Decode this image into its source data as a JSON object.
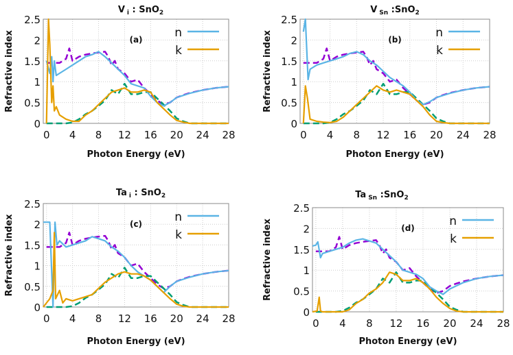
{
  "chart_data": [
    {
      "type": "line",
      "title": {
        "main": "V",
        "sub": "i",
        "rest": " : SnO",
        "sub2": "2"
      },
      "panel_label": "(a)",
      "xlabel": "Photon Energy (eV)",
      "ylabel": "Refractive index",
      "xlim": [
        -0.5,
        28
      ],
      "ylim": [
        0,
        2.5
      ],
      "xticks": [
        0,
        4,
        8,
        12,
        16,
        20,
        24,
        28
      ],
      "yticks": [
        0,
        0.5,
        1,
        1.5,
        2,
        2.5
      ],
      "ytick_labels": [
        "0",
        "0.5",
        "1",
        "1.5",
        "2",
        "2.5"
      ],
      "grid": true,
      "legend": "top-right",
      "series": [
        {
          "name": "n",
          "color": "#5ab4e5",
          "style": "solid",
          "x": [
            0,
            0.5,
            0.8,
            1,
            1.2,
            1.5,
            2,
            3,
            4,
            5,
            6,
            7,
            8,
            9,
            10,
            11,
            12,
            13,
            14,
            15,
            16,
            17,
            18,
            19,
            20,
            22,
            24,
            26,
            28
          ],
          "y": [
            1.5,
            1.2,
            1.6,
            1.0,
            1.5,
            1.15,
            1.2,
            1.3,
            1.4,
            1.5,
            1.6,
            1.65,
            1.72,
            1.6,
            1.45,
            1.3,
            1.15,
            0.95,
            0.9,
            0.85,
            0.65,
            0.5,
            0.42,
            0.5,
            0.62,
            0.72,
            0.8,
            0.85,
            0.88
          ]
        },
        {
          "name": "k",
          "color": "#e69f00",
          "style": "solid",
          "x": [
            0,
            0.3,
            0.5,
            0.8,
            1,
            1.2,
            1.5,
            2,
            3,
            4,
            5,
            6,
            7,
            8,
            9,
            10,
            11,
            12,
            13,
            14,
            15,
            16,
            17,
            18,
            19,
            20,
            21,
            22,
            28
          ],
          "y": [
            0,
            2.5,
            1.9,
            0.5,
            0.9,
            0.3,
            0.4,
            0.2,
            0.1,
            0.05,
            0.05,
            0.2,
            0.3,
            0.45,
            0.6,
            0.75,
            0.8,
            0.85,
            0.75,
            0.75,
            0.8,
            0.75,
            0.5,
            0.35,
            0.2,
            0.07,
            0.03,
            0,
            0
          ]
        },
        {
          "color": "#9400d3",
          "style": "dashed",
          "x": [
            0,
            2,
            3,
            3.5,
            4,
            5,
            6,
            7,
            8,
            9,
            9.5,
            10,
            10.5,
            11,
            12,
            13,
            14,
            15,
            16,
            17,
            18,
            19,
            20,
            21,
            22,
            24,
            26,
            28
          ],
          "y": [
            1.45,
            1.45,
            1.55,
            1.8,
            1.5,
            1.6,
            1.65,
            1.68,
            1.7,
            1.72,
            1.6,
            1.4,
            1.5,
            1.3,
            1.2,
            1.0,
            1.05,
            0.85,
            0.7,
            0.55,
            0.45,
            0.5,
            0.62,
            0.68,
            0.73,
            0.8,
            0.85,
            0.88
          ]
        },
        {
          "color": "#009e73",
          "style": "dashed",
          "x": [
            0,
            3,
            4,
            5,
            6,
            7,
            8,
            9,
            10,
            11,
            12,
            13,
            14,
            15,
            16,
            17,
            18,
            19,
            20,
            21,
            22,
            28
          ],
          "y": [
            0,
            0,
            0.02,
            0.1,
            0.22,
            0.3,
            0.42,
            0.55,
            0.8,
            0.7,
            0.95,
            0.7,
            0.7,
            0.75,
            0.75,
            0.6,
            0.45,
            0.3,
            0.12,
            0.05,
            0,
            0
          ]
        }
      ]
    },
    {
      "type": "line",
      "title": {
        "main": "V",
        "sub": "Sn",
        "rest": " :SnO",
        "sub2": "2"
      },
      "panel_label": "(b)",
      "xlabel": "Photon Energy (eV)",
      "ylabel": "Refractive index",
      "xlim": [
        -0.5,
        28
      ],
      "ylim": [
        0,
        2.5
      ],
      "xticks": [
        0,
        4,
        8,
        12,
        16,
        20,
        24,
        28
      ],
      "yticks": [
        0,
        0.5,
        1,
        1.5,
        2,
        2.5
      ],
      "ytick_labels": [
        "0",
        "0.5",
        "1",
        "1.5",
        "2",
        "2.5"
      ],
      "grid": true,
      "legend": "top-right",
      "series": [
        {
          "name": "n",
          "color": "#5ab4e5",
          "style": "solid",
          "x": [
            0,
            0.3,
            0.7,
            1,
            2,
            3,
            4,
            5,
            6,
            7,
            8,
            9,
            10,
            11,
            12,
            13,
            14,
            15,
            16,
            17,
            18,
            19,
            20,
            22,
            24,
            26,
            28
          ],
          "y": [
            2.2,
            2.5,
            1.05,
            1.3,
            1.4,
            1.45,
            1.5,
            1.55,
            1.6,
            1.68,
            1.72,
            1.65,
            1.5,
            1.4,
            1.25,
            1.1,
            1.0,
            0.9,
            0.75,
            0.55,
            0.45,
            0.52,
            0.62,
            0.72,
            0.8,
            0.85,
            0.88
          ]
        },
        {
          "name": "k",
          "color": "#e69f00",
          "style": "solid",
          "x": [
            0,
            0.3,
            0.6,
            1,
            2,
            3,
            4,
            5,
            6,
            7,
            8,
            9,
            10,
            11,
            12,
            13,
            14,
            15,
            16,
            17,
            18,
            19,
            20,
            21,
            22,
            28
          ],
          "y": [
            0,
            0.9,
            0.6,
            0.1,
            0.05,
            0.03,
            0.02,
            0.05,
            0.15,
            0.3,
            0.45,
            0.6,
            0.75,
            0.9,
            0.8,
            0.75,
            0.8,
            0.75,
            0.7,
            0.55,
            0.4,
            0.2,
            0.05,
            0.02,
            0,
            0
          ]
        },
        {
          "color": "#9400d3",
          "style": "dashed",
          "x": [
            0,
            2,
            3,
            3.5,
            4,
            5,
            6,
            7,
            8,
            9,
            9.5,
            10,
            10.5,
            11,
            12,
            13,
            14,
            15,
            16,
            17,
            18,
            19,
            20,
            21,
            22,
            24,
            26,
            28
          ],
          "y": [
            1.45,
            1.45,
            1.55,
            1.8,
            1.5,
            1.6,
            1.65,
            1.68,
            1.7,
            1.72,
            1.6,
            1.4,
            1.5,
            1.3,
            1.2,
            1.0,
            1.05,
            0.85,
            0.7,
            0.55,
            0.45,
            0.5,
            0.62,
            0.68,
            0.73,
            0.8,
            0.85,
            0.88
          ]
        },
        {
          "color": "#009e73",
          "style": "dashed",
          "x": [
            0,
            3,
            4,
            5,
            6,
            7,
            8,
            9,
            10,
            11,
            12,
            13,
            14,
            15,
            16,
            17,
            18,
            19,
            20,
            21,
            22,
            28
          ],
          "y": [
            0,
            0,
            0.02,
            0.1,
            0.22,
            0.3,
            0.42,
            0.55,
            0.8,
            0.7,
            0.95,
            0.7,
            0.7,
            0.75,
            0.75,
            0.6,
            0.45,
            0.3,
            0.12,
            0.05,
            0,
            0
          ]
        }
      ]
    },
    {
      "type": "line",
      "title": {
        "main": "Ta",
        "sub": "i",
        "rest": " : SnO",
        "sub2": "2"
      },
      "panel_label": "(c)",
      "xlabel": "Photon Energy (eV)",
      "ylabel": "Refractive index",
      "xlim": [
        -0.5,
        28
      ],
      "ylim": [
        0,
        2.5
      ],
      "xticks": [
        0,
        4,
        8,
        12,
        16,
        20,
        24,
        28
      ],
      "yticks": [
        0,
        0.5,
        1,
        1.5,
        2,
        2.5
      ],
      "ytick_labels": [
        "0",
        "0.5",
        "1",
        "1.5",
        "2",
        "2.5"
      ],
      "grid": true,
      "legend": "top-right",
      "series": [
        {
          "name": "n",
          "color": "#5ab4e5",
          "style": "solid",
          "x": [
            -0.5,
            0.5,
            1,
            1.3,
            1.6,
            2,
            3,
            4,
            5,
            6,
            7,
            8,
            9,
            10,
            11,
            12,
            13,
            14,
            15,
            16,
            17,
            18,
            19,
            20,
            22,
            24,
            26,
            28
          ],
          "y": [
            2.05,
            2.05,
            0,
            2.05,
            1.5,
            1.6,
            1.45,
            1.5,
            1.55,
            1.6,
            1.7,
            1.65,
            1.6,
            1.45,
            1.35,
            1.2,
            1.0,
            0.85,
            0.75,
            0.65,
            0.5,
            0.35,
            0.5,
            0.62,
            0.72,
            0.8,
            0.85,
            0.88
          ]
        },
        {
          "name": "k",
          "color": "#e69f00",
          "style": "solid",
          "x": [
            -0.5,
            0,
            0.5,
            1,
            1.2,
            1.4,
            2,
            2.5,
            3,
            4,
            5,
            6,
            7,
            8,
            9,
            10,
            11,
            12,
            13,
            14,
            15,
            16,
            17,
            18,
            19,
            20,
            21,
            22,
            28
          ],
          "y": [
            0,
            0.1,
            0.2,
            0.4,
            1.8,
            0.2,
            0.4,
            0.1,
            0.2,
            0.15,
            0.2,
            0.25,
            0.3,
            0.45,
            0.6,
            0.7,
            0.8,
            0.85,
            0.8,
            0.8,
            0.75,
            0.65,
            0.5,
            0.35,
            0.2,
            0.07,
            0.02,
            0,
            0
          ]
        },
        {
          "color": "#9400d3",
          "style": "dashed",
          "x": [
            0,
            2,
            3,
            3.5,
            4,
            5,
            6,
            7,
            8,
            9,
            9.5,
            10,
            10.5,
            11,
            12,
            13,
            14,
            15,
            16,
            17,
            18,
            19,
            20,
            21,
            22,
            24,
            26,
            28
          ],
          "y": [
            1.45,
            1.45,
            1.55,
            1.8,
            1.5,
            1.6,
            1.65,
            1.68,
            1.7,
            1.72,
            1.6,
            1.4,
            1.5,
            1.3,
            1.2,
            1.0,
            1.05,
            0.85,
            0.7,
            0.55,
            0.45,
            0.5,
            0.62,
            0.68,
            0.73,
            0.8,
            0.85,
            0.88
          ]
        },
        {
          "color": "#009e73",
          "style": "dashed",
          "x": [
            0,
            3,
            4,
            5,
            6,
            7,
            8,
            9,
            10,
            11,
            12,
            13,
            14,
            15,
            16,
            17,
            18,
            19,
            20,
            21,
            22,
            28
          ],
          "y": [
            0,
            0,
            0.02,
            0.1,
            0.22,
            0.3,
            0.42,
            0.55,
            0.8,
            0.7,
            0.95,
            0.7,
            0.7,
            0.75,
            0.75,
            0.6,
            0.45,
            0.3,
            0.12,
            0.05,
            0,
            0
          ]
        }
      ]
    },
    {
      "type": "line",
      "title": {
        "main": "Ta",
        "sub": "Sn",
        "rest": " :SnO",
        "sub2": "2"
      },
      "panel_label": "(d)",
      "xlabel": "Photon Energy (eV)",
      "ylabel": "Refractive index",
      "xlim": [
        -0.5,
        28
      ],
      "ylim": [
        0,
        2.5
      ],
      "xticks": [
        0,
        4,
        8,
        12,
        16,
        20,
        24,
        28
      ],
      "yticks": [
        0,
        0.5,
        1,
        1.5,
        2,
        2.5
      ],
      "ytick_labels": [
        "0",
        "0.5",
        "1",
        "1.5",
        "2",
        "2.5"
      ],
      "grid": true,
      "legend": "top-right",
      "series": [
        {
          "name": "n",
          "color": "#5ab4e5",
          "style": "solid",
          "x": [
            -0.5,
            0,
            0.3,
            0.7,
            1,
            2,
            3,
            4,
            5,
            6,
            7,
            8,
            9,
            10,
            11,
            12,
            13,
            14,
            15,
            16,
            17,
            18,
            19,
            20,
            22,
            24,
            26,
            28
          ],
          "y": [
            1.58,
            1.6,
            1.68,
            1.3,
            1.4,
            1.45,
            1.5,
            1.55,
            1.65,
            1.72,
            1.75,
            1.7,
            1.65,
            1.5,
            1.35,
            1.2,
            1.0,
            0.95,
            0.9,
            0.8,
            0.6,
            0.5,
            0.42,
            0.55,
            0.7,
            0.8,
            0.85,
            0.88
          ]
        },
        {
          "name": "k",
          "color": "#e69f00",
          "style": "solid",
          "x": [
            -0.5,
            0.2,
            0.5,
            0.7,
            1,
            4,
            5,
            6,
            7,
            8,
            9,
            10,
            11,
            12,
            13,
            14,
            15,
            16,
            17,
            18,
            19,
            20,
            21,
            22,
            28
          ],
          "y": [
            0,
            0.02,
            0.35,
            0.02,
            0,
            0,
            0.05,
            0.2,
            0.3,
            0.45,
            0.55,
            0.7,
            0.95,
            0.9,
            0.75,
            0.75,
            0.8,
            0.7,
            0.55,
            0.35,
            0.2,
            0.08,
            0.02,
            0,
            0
          ]
        },
        {
          "color": "#9400d3",
          "style": "dashed",
          "x": [
            0,
            2,
            3,
            3.5,
            4,
            5,
            6,
            7,
            8,
            9,
            9.5,
            10,
            10.5,
            11,
            12,
            13,
            14,
            15,
            16,
            17,
            18,
            19,
            20,
            21,
            22,
            24,
            26,
            28
          ],
          "y": [
            1.45,
            1.45,
            1.55,
            1.8,
            1.5,
            1.6,
            1.65,
            1.68,
            1.7,
            1.72,
            1.6,
            1.4,
            1.5,
            1.3,
            1.2,
            1.0,
            1.05,
            0.85,
            0.7,
            0.55,
            0.45,
            0.5,
            0.62,
            0.68,
            0.73,
            0.8,
            0.85,
            0.88
          ]
        },
        {
          "color": "#009e73",
          "style": "dashed",
          "x": [
            0,
            3,
            4,
            5,
            6,
            7,
            8,
            9,
            10,
            11,
            12,
            13,
            14,
            15,
            16,
            17,
            18,
            19,
            20,
            21,
            22,
            28
          ],
          "y": [
            0,
            0,
            0.02,
            0.1,
            0.22,
            0.3,
            0.42,
            0.55,
            0.8,
            0.7,
            0.95,
            0.7,
            0.7,
            0.75,
            0.75,
            0.6,
            0.45,
            0.3,
            0.12,
            0.05,
            0,
            0
          ]
        }
      ]
    }
  ]
}
